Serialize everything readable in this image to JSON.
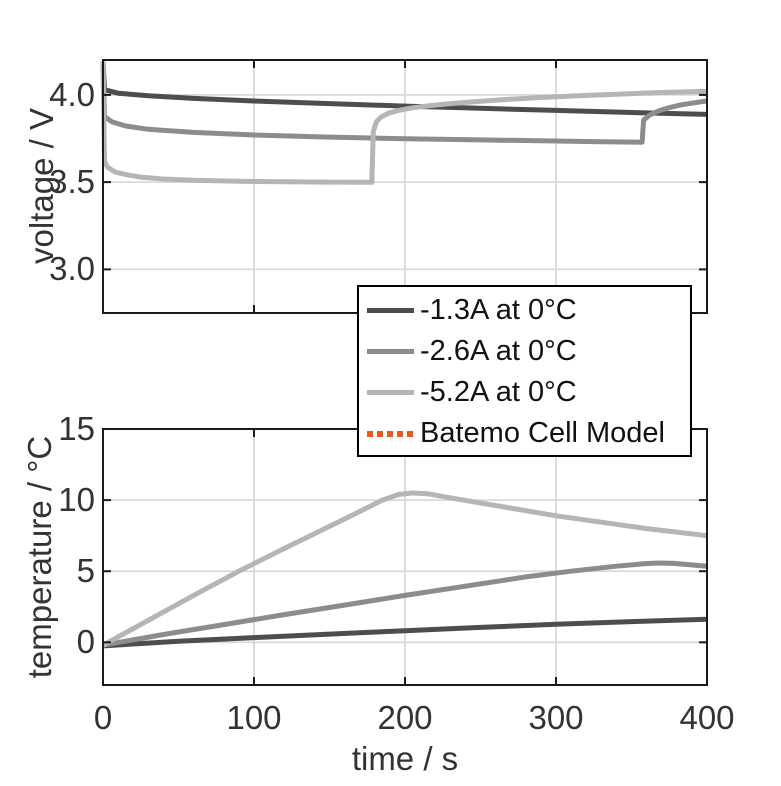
{
  "figure": {
    "background": "#ffffff",
    "text_color": "#333333",
    "frame_color": "#1a1a1a",
    "grid_color": "#d9d9d9"
  },
  "legend": {
    "items": [
      {
        "label": "-1.3A at 0°C",
        "color": "#4d4d4d",
        "style": "solid"
      },
      {
        "label": "-2.6A at 0°C",
        "color": "#8c8c8c",
        "style": "solid"
      },
      {
        "label": "-5.2A at 0°C",
        "color": "#b5b5b5",
        "style": "solid"
      },
      {
        "label": "Batemo Cell Model",
        "color": "#e8591c",
        "style": "dotted"
      }
    ]
  },
  "chart_data": [
    {
      "type": "line",
      "title": "",
      "ylabel": "voltage / V",
      "xlabel": "",
      "xlim": [
        0,
        400
      ],
      "ylim": [
        2.75,
        4.2
      ],
      "grid": true,
      "xticks": [
        0,
        100,
        200,
        300,
        400
      ],
      "xtick_labels_visible": false,
      "yticks": [
        4.0,
        3.5,
        3.0
      ],
      "ytick_labels": [
        "4.0",
        "3.5",
        "3.0"
      ],
      "series": [
        {
          "name": "-1.3A at 0°C",
          "color": "#4d4d4d",
          "points": [
            [
              0,
              4.19
            ],
            [
              1,
              4.03
            ],
            [
              10,
              4.01
            ],
            [
              30,
              3.995
            ],
            [
              60,
              3.98
            ],
            [
              100,
              3.965
            ],
            [
              150,
              3.95
            ],
            [
              200,
              3.936
            ],
            [
              250,
              3.923
            ],
            [
              300,
              3.911
            ],
            [
              350,
              3.899
            ],
            [
              400,
              3.888
            ]
          ]
        },
        {
          "name": "-2.6A at 0°C",
          "color": "#8c8c8c",
          "points": [
            [
              0,
              4.19
            ],
            [
              1,
              3.875
            ],
            [
              6,
              3.845
            ],
            [
              15,
              3.822
            ],
            [
              30,
              3.803
            ],
            [
              60,
              3.785
            ],
            [
              100,
              3.77
            ],
            [
              150,
              3.758
            ],
            [
              200,
              3.749
            ],
            [
              250,
              3.742
            ],
            [
              300,
              3.736
            ],
            [
              330,
              3.732
            ],
            [
              357,
              3.729
            ],
            [
              358,
              3.855
            ],
            [
              362,
              3.885
            ],
            [
              368,
              3.908
            ],
            [
              375,
              3.927
            ],
            [
              383,
              3.943
            ],
            [
              392,
              3.955
            ],
            [
              400,
              3.965
            ]
          ]
        },
        {
          "name": "-5.2A at 0°C",
          "color": "#b5b5b5",
          "points": [
            [
              0,
              4.188
            ],
            [
              1,
              3.62
            ],
            [
              3,
              3.585
            ],
            [
              8,
              3.558
            ],
            [
              15,
              3.543
            ],
            [
              25,
              3.529
            ],
            [
              40,
              3.518
            ],
            [
              60,
              3.511
            ],
            [
              90,
              3.505
            ],
            [
              120,
              3.502
            ],
            [
              150,
              3.5
            ],
            [
              178,
              3.499
            ],
            [
              179,
              3.79
            ],
            [
              181,
              3.845
            ],
            [
              184,
              3.872
            ],
            [
              189,
              3.895
            ],
            [
              196,
              3.912
            ],
            [
              205,
              3.926
            ],
            [
              216,
              3.938
            ],
            [
              230,
              3.95
            ],
            [
              248,
              3.962
            ],
            [
              268,
              3.974
            ],
            [
              290,
              3.985
            ],
            [
              315,
              3.995
            ],
            [
              340,
              4.004
            ],
            [
              365,
              4.012
            ],
            [
              385,
              4.017
            ],
            [
              400,
              4.02
            ]
          ]
        }
      ]
    },
    {
      "type": "line",
      "title": "",
      "ylabel": "temperature / °C",
      "xlabel": "time / s",
      "xlim": [
        0,
        400
      ],
      "ylim": [
        -3,
        15
      ],
      "grid": true,
      "xticks": [
        0,
        100,
        200,
        300,
        400
      ],
      "xtick_labels": [
        "0",
        "100",
        "200",
        "300",
        "400"
      ],
      "xtick_labels_visible": true,
      "yticks": [
        15,
        10,
        5,
        0
      ],
      "ytick_labels": [
        "15",
        "10",
        "5",
        "0"
      ],
      "series": [
        {
          "name": "-1.3A at 0°C",
          "color": "#4d4d4d",
          "points": [
            [
              0,
              -0.25
            ],
            [
              50,
              0.08
            ],
            [
              100,
              0.33
            ],
            [
              150,
              0.58
            ],
            [
              200,
              0.82
            ],
            [
              250,
              1.05
            ],
            [
              300,
              1.27
            ],
            [
              350,
              1.46
            ],
            [
              400,
              1.62
            ]
          ]
        },
        {
          "name": "-2.6A at 0°C",
          "color": "#8c8c8c",
          "points": [
            [
              0,
              -0.2
            ],
            [
              40,
              0.55
            ],
            [
              80,
              1.25
            ],
            [
              120,
              1.95
            ],
            [
              160,
              2.62
            ],
            [
              200,
              3.3
            ],
            [
              240,
              3.95
            ],
            [
              280,
              4.6
            ],
            [
              310,
              5.0
            ],
            [
              340,
              5.35
            ],
            [
              358,
              5.52
            ],
            [
              368,
              5.58
            ],
            [
              378,
              5.55
            ],
            [
              400,
              5.35
            ]
          ]
        },
        {
          "name": "-5.2A at 0°C",
          "color": "#b5b5b5",
          "points": [
            [
              0,
              -0.2
            ],
            [
              30,
              1.55
            ],
            [
              60,
              3.3
            ],
            [
              90,
              5.0
            ],
            [
              120,
              6.6
            ],
            [
              150,
              8.15
            ],
            [
              170,
              9.2
            ],
            [
              185,
              10.0
            ],
            [
              196,
              10.4
            ],
            [
              205,
              10.5
            ],
            [
              215,
              10.45
            ],
            [
              228,
              10.2
            ],
            [
              250,
              9.8
            ],
            [
              275,
              9.35
            ],
            [
              300,
              8.9
            ],
            [
              330,
              8.45
            ],
            [
              360,
              8.0
            ],
            [
              380,
              7.75
            ],
            [
              400,
              7.5
            ]
          ]
        }
      ]
    }
  ]
}
